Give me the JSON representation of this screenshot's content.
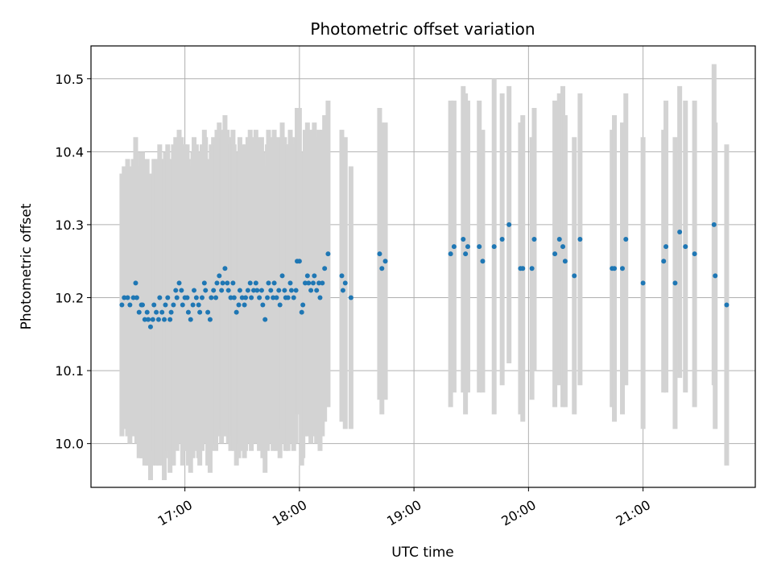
{
  "chart_data": {
    "type": "scatter",
    "title": "Photometric offset variation",
    "xlabel": "UTC time",
    "ylabel": "Photometric offset",
    "x_unit": "hours UTC",
    "xlim": [
      16.18,
      21.98
    ],
    "ylim": [
      9.94,
      10.545
    ],
    "xticks": [
      {
        "value": 17,
        "label": "17:00"
      },
      {
        "value": 18,
        "label": "18:00"
      },
      {
        "value": 19,
        "label": "19:00"
      },
      {
        "value": 20,
        "label": "20:00"
      },
      {
        "value": 21,
        "label": "21:00"
      }
    ],
    "yticks": [
      {
        "value": 10.0,
        "label": "10.0"
      },
      {
        "value": 10.1,
        "label": "10.1"
      },
      {
        "value": 10.2,
        "label": "10.2"
      },
      {
        "value": 10.3,
        "label": "10.3"
      },
      {
        "value": 10.4,
        "label": "10.4"
      },
      {
        "value": 10.5,
        "label": "10.5"
      }
    ],
    "grid": true,
    "colors": {
      "marker": "#1f77b4",
      "errorbar": "#d3d3d3",
      "grid": "#b0b0b0"
    },
    "series": [
      {
        "points": [
          [
            16.45,
            10.19,
            0.18
          ],
          [
            16.47,
            10.2,
            0.18
          ],
          [
            16.5,
            10.2,
            0.19
          ],
          [
            16.52,
            10.19,
            0.19
          ],
          [
            16.55,
            10.2,
            0.19
          ],
          [
            16.57,
            10.22,
            0.2
          ],
          [
            16.58,
            10.2,
            0.2
          ],
          [
            16.6,
            10.18,
            0.2
          ],
          [
            16.62,
            10.19,
            0.21
          ],
          [
            16.63,
            10.19,
            0.21
          ],
          [
            16.65,
            10.17,
            0.2
          ],
          [
            16.67,
            10.18,
            0.21
          ],
          [
            16.68,
            10.17,
            0.2
          ],
          [
            16.7,
            10.16,
            0.21
          ],
          [
            16.72,
            10.17,
            0.2
          ],
          [
            16.73,
            10.19,
            0.2
          ],
          [
            16.75,
            10.18,
            0.21
          ],
          [
            16.77,
            10.17,
            0.2
          ],
          [
            16.78,
            10.2,
            0.21
          ],
          [
            16.8,
            10.18,
            0.21
          ],
          [
            16.82,
            10.17,
            0.22
          ],
          [
            16.83,
            10.19,
            0.21
          ],
          [
            16.85,
            10.2,
            0.21
          ],
          [
            16.87,
            10.17,
            0.21
          ],
          [
            16.88,
            10.18,
            0.21
          ],
          [
            16.9,
            10.19,
            0.22
          ],
          [
            16.92,
            10.21,
            0.21
          ],
          [
            16.93,
            10.2,
            0.21
          ],
          [
            16.95,
            10.22,
            0.21
          ],
          [
            16.97,
            10.21,
            0.21
          ],
          [
            16.98,
            10.19,
            0.22
          ],
          [
            17.0,
            10.2,
            0.21
          ],
          [
            17.02,
            10.2,
            0.21
          ],
          [
            17.03,
            10.18,
            0.21
          ],
          [
            17.05,
            10.17,
            0.21
          ],
          [
            17.07,
            10.19,
            0.21
          ],
          [
            17.08,
            10.21,
            0.21
          ],
          [
            17.1,
            10.2,
            0.21
          ],
          [
            17.12,
            10.19,
            0.21
          ],
          [
            17.13,
            10.18,
            0.21
          ],
          [
            17.15,
            10.2,
            0.21
          ],
          [
            17.17,
            10.22,
            0.21
          ],
          [
            17.18,
            10.21,
            0.21
          ],
          [
            17.2,
            10.18,
            0.21
          ],
          [
            17.22,
            10.17,
            0.21
          ],
          [
            17.23,
            10.2,
            0.21
          ],
          [
            17.25,
            10.21,
            0.21
          ],
          [
            17.27,
            10.2,
            0.21
          ],
          [
            17.28,
            10.22,
            0.21
          ],
          [
            17.3,
            10.23,
            0.21
          ],
          [
            17.32,
            10.21,
            0.21
          ],
          [
            17.33,
            10.22,
            0.21
          ],
          [
            17.35,
            10.24,
            0.21
          ],
          [
            17.37,
            10.22,
            0.21
          ],
          [
            17.38,
            10.21,
            0.21
          ],
          [
            17.4,
            10.2,
            0.21
          ],
          [
            17.42,
            10.22,
            0.21
          ],
          [
            17.43,
            10.2,
            0.21
          ],
          [
            17.45,
            10.18,
            0.21
          ],
          [
            17.47,
            10.19,
            0.21
          ],
          [
            17.48,
            10.21,
            0.21
          ],
          [
            17.5,
            10.2,
            0.21
          ],
          [
            17.52,
            10.19,
            0.21
          ],
          [
            17.53,
            10.2,
            0.21
          ],
          [
            17.55,
            10.21,
            0.21
          ],
          [
            17.57,
            10.22,
            0.21
          ],
          [
            17.58,
            10.2,
            0.21
          ],
          [
            17.6,
            10.21,
            0.21
          ],
          [
            17.62,
            10.22,
            0.21
          ],
          [
            17.63,
            10.21,
            0.21
          ],
          [
            17.65,
            10.2,
            0.21
          ],
          [
            17.67,
            10.21,
            0.21
          ],
          [
            17.68,
            10.19,
            0.21
          ],
          [
            17.7,
            10.17,
            0.21
          ],
          [
            17.72,
            10.2,
            0.21
          ],
          [
            17.73,
            10.22,
            0.21
          ],
          [
            17.75,
            10.21,
            0.21
          ],
          [
            17.77,
            10.2,
            0.21
          ],
          [
            17.78,
            10.22,
            0.21
          ],
          [
            17.8,
            10.2,
            0.21
          ],
          [
            17.82,
            10.21,
            0.21
          ],
          [
            17.83,
            10.19,
            0.21
          ],
          [
            17.85,
            10.23,
            0.21
          ],
          [
            17.87,
            10.21,
            0.21
          ],
          [
            17.88,
            10.2,
            0.21
          ],
          [
            17.9,
            10.2,
            0.21
          ],
          [
            17.92,
            10.22,
            0.21
          ],
          [
            17.93,
            10.21,
            0.21
          ],
          [
            17.95,
            10.2,
            0.21
          ],
          [
            17.97,
            10.21,
            0.21
          ],
          [
            17.98,
            10.25,
            0.21
          ],
          [
            18.0,
            10.25,
            0.21
          ],
          [
            18.02,
            10.18,
            0.21
          ],
          [
            18.03,
            10.19,
            0.21
          ],
          [
            18.05,
            10.22,
            0.21
          ],
          [
            18.07,
            10.23,
            0.21
          ],
          [
            18.08,
            10.22,
            0.21
          ],
          [
            18.1,
            10.21,
            0.21
          ],
          [
            18.12,
            10.22,
            0.21
          ],
          [
            18.13,
            10.23,
            0.21
          ],
          [
            18.15,
            10.21,
            0.21
          ],
          [
            18.17,
            10.22,
            0.21
          ],
          [
            18.18,
            10.2,
            0.21
          ],
          [
            18.2,
            10.22,
            0.21
          ],
          [
            18.22,
            10.24,
            0.21
          ],
          [
            18.25,
            10.26,
            0.21
          ],
          [
            18.37,
            10.23,
            0.2
          ],
          [
            18.38,
            10.21,
            0.18
          ],
          [
            18.4,
            10.22,
            0.2
          ],
          [
            18.45,
            10.2,
            0.18
          ],
          [
            18.7,
            10.26,
            0.2
          ],
          [
            18.72,
            10.24,
            0.2
          ],
          [
            18.75,
            10.25,
            0.19
          ],
          [
            19.32,
            10.26,
            0.21
          ],
          [
            19.35,
            10.27,
            0.2
          ],
          [
            19.43,
            10.28,
            0.21
          ],
          [
            19.45,
            10.26,
            0.22
          ],
          [
            19.47,
            10.27,
            0.2
          ],
          [
            19.57,
            10.27,
            0.2
          ],
          [
            19.6,
            10.25,
            0.18
          ],
          [
            19.7,
            10.27,
            0.23
          ],
          [
            19.77,
            10.28,
            0.2
          ],
          [
            19.83,
            10.3,
            0.19
          ],
          [
            19.93,
            10.24,
            0.2
          ],
          [
            19.95,
            10.24,
            0.21
          ],
          [
            20.03,
            10.24,
            0.18
          ],
          [
            20.05,
            10.28,
            0.18
          ],
          [
            20.23,
            10.26,
            0.21
          ],
          [
            20.27,
            10.28,
            0.2
          ],
          [
            20.3,
            10.27,
            0.22
          ],
          [
            20.32,
            10.25,
            0.2
          ],
          [
            20.4,
            10.23,
            0.19
          ],
          [
            20.45,
            10.28,
            0.2
          ],
          [
            20.73,
            10.24,
            0.19
          ],
          [
            20.75,
            10.24,
            0.21
          ],
          [
            20.82,
            10.24,
            0.2
          ],
          [
            20.85,
            10.28,
            0.2
          ],
          [
            21.0,
            10.22,
            0.2
          ],
          [
            21.18,
            10.25,
            0.18
          ],
          [
            21.2,
            10.27,
            0.2
          ],
          [
            21.28,
            10.22,
            0.2
          ],
          [
            21.32,
            10.29,
            0.2
          ],
          [
            21.37,
            10.27,
            0.2
          ],
          [
            21.45,
            10.26,
            0.21
          ],
          [
            21.62,
            10.3,
            0.22
          ],
          [
            21.63,
            10.23,
            0.21
          ],
          [
            21.73,
            10.19,
            0.22
          ]
        ]
      }
    ]
  }
}
